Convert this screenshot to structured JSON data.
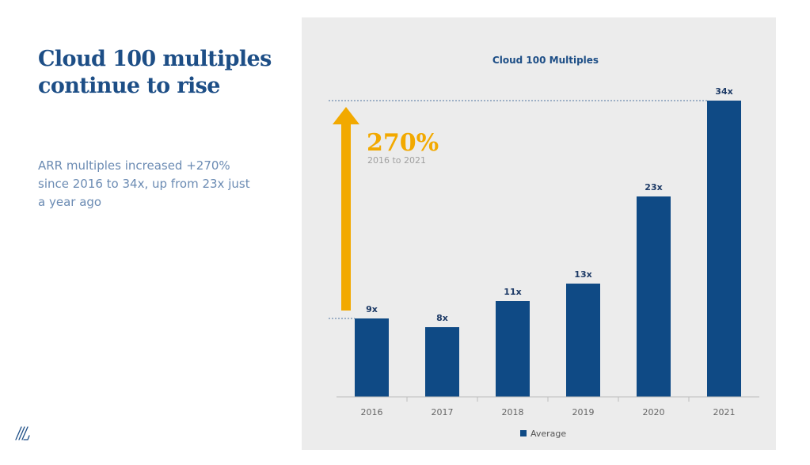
{
  "slide": {
    "headline": "Cloud 100 multiples continue to rise",
    "subtext": "ARR multiples increased +270% since 2016 to 34x, up from 23x just a year ago"
  },
  "colors": {
    "headline": "#1d4e86",
    "subtext": "#6b8bb3",
    "bar": "#0f4a85",
    "arrow": "#f2a900",
    "panel": "#ececec"
  },
  "chart_data": {
    "type": "bar",
    "title": "Cloud 100 Multiples",
    "categories": [
      "2016",
      "2017",
      "2018",
      "2019",
      "2020",
      "2021"
    ],
    "series": [
      {
        "name": "Average",
        "values": [
          9,
          8,
          11,
          13,
          23,
          34
        ],
        "labels": [
          "9x",
          "8x",
          "11x",
          "13x",
          "23x",
          "34x"
        ]
      }
    ],
    "ylim": [
      0,
      34
    ],
    "grid": false,
    "legend": "bottom",
    "annotation": {
      "value": "270%",
      "subtitle": "2016 to 2021",
      "from_category": "2016",
      "to_category": "2021"
    }
  }
}
